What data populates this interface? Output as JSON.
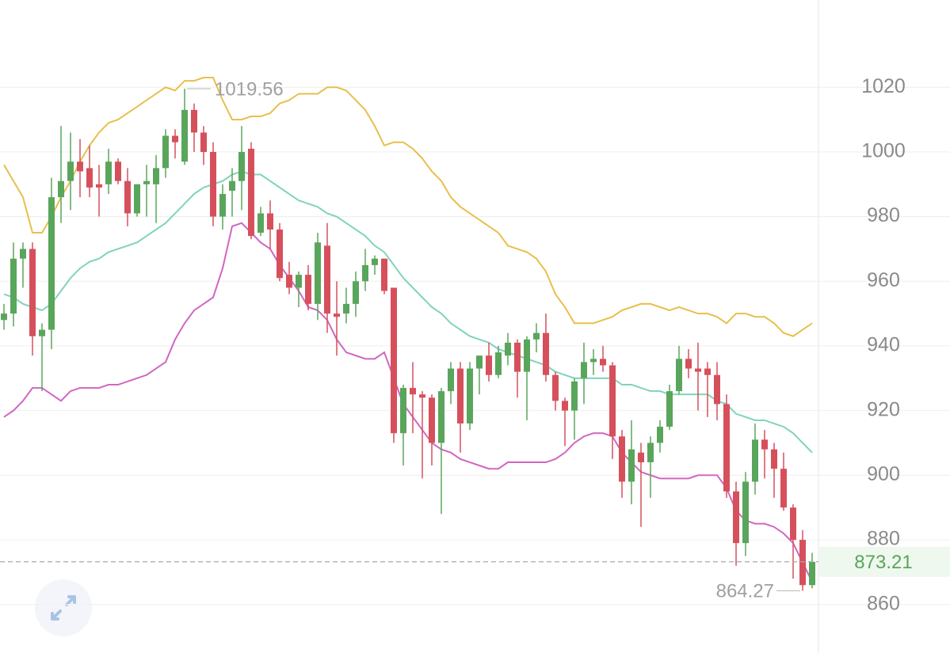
{
  "chart_data": {
    "type": "candlestick",
    "ylim": [
      845,
      1047
    ],
    "yticks": [
      860,
      880,
      900,
      920,
      940,
      960,
      980,
      1000,
      1020
    ],
    "grid": true,
    "up_color": "#5aa55c",
    "down_color": "#d6505c",
    "open": [
      948,
      950,
      967,
      970,
      943,
      945,
      986,
      991,
      997,
      995,
      990,
      990,
      997,
      991,
      981,
      990,
      990,
      995,
      1005,
      997,
      1013,
      1006,
      1000,
      980,
      988,
      991,
      1001,
      975,
      981,
      976,
      962,
      958,
      962,
      953,
      971,
      950,
      950,
      953,
      960,
      965,
      967,
      958,
      913,
      927,
      925,
      924,
      910,
      926,
      933,
      916,
      933,
      937,
      931,
      937,
      941,
      932,
      942,
      944,
      931,
      923,
      920,
      930,
      935,
      936,
      934,
      912,
      898,
      907,
      904,
      910,
      915,
      926,
      936,
      933,
      933,
      931,
      922,
      895,
      879,
      898,
      911,
      908,
      902,
      890,
      880,
      866
    ],
    "high": [
      953,
      972,
      972,
      972,
      947,
      992,
      1008,
      1006,
      1004,
      1002,
      996,
      1001,
      998,
      995,
      990,
      996,
      999,
      1007,
      1007,
      1019.56,
      1015,
      1008,
      1003,
      990,
      995,
      1008,
      1003,
      983,
      985,
      978,
      966,
      963,
      965,
      975,
      978,
      960,
      958,
      963,
      970,
      968,
      967,
      958,
      928,
      935,
      926,
      925,
      927,
      935,
      935,
      935,
      937,
      941,
      940,
      944,
      942,
      943,
      947,
      950,
      932,
      924,
      930,
      941,
      939,
      940,
      935,
      914,
      917,
      910,
      912,
      917,
      928,
      940,
      939,
      941,
      935,
      935,
      925,
      898,
      901,
      916,
      914,
      910,
      907,
      891,
      883,
      876
    ],
    "low": [
      945,
      946,
      958,
      937,
      926,
      939,
      978,
      982,
      986,
      986,
      980,
      987,
      990,
      977,
      980,
      980,
      978,
      992,
      998,
      996,
      1000,
      996,
      977,
      976,
      980,
      982,
      973,
      974,
      970,
      960,
      956,
      952,
      951,
      948,
      944,
      937,
      947,
      949,
      957,
      962,
      956,
      910,
      903,
      913,
      899,
      903,
      888,
      922,
      907,
      914,
      925,
      929,
      930,
      934,
      924,
      917,
      938,
      929,
      920,
      909,
      911,
      922,
      931,
      932,
      905,
      893,
      891,
      884,
      893,
      907,
      914,
      925,
      930,
      920,
      918,
      917,
      893,
      872,
      875,
      894,
      899,
      893,
      889,
      868,
      864.27,
      865
    ],
    "close": [
      950,
      967,
      970,
      943,
      945,
      986,
      991,
      997,
      994,
      989,
      989,
      997,
      991,
      981,
      990,
      991,
      995,
      1005,
      1003,
      1013,
      1006,
      1000,
      980,
      987,
      991,
      1000,
      974,
      981,
      976,
      961,
      958,
      962,
      953,
      972,
      950,
      949,
      953,
      960,
      965,
      967,
      957,
      913,
      927,
      925,
      924,
      910,
      926,
      933,
      916,
      933,
      937,
      931,
      938,
      941,
      932,
      942,
      944,
      931,
      923,
      920,
      929,
      935,
      936,
      934,
      912,
      898,
      908,
      904,
      910,
      915,
      926,
      936,
      933,
      932,
      931,
      922,
      895,
      879,
      898,
      911,
      908,
      902,
      890,
      880,
      866,
      873.21
    ],
    "series": [
      {
        "color": "#e8bf4c",
        "values": [
          996,
          991,
          986,
          975,
          975,
          980,
          986,
          991,
          997,
          1002,
          1006,
          1009,
          1010,
          1012,
          1014,
          1016,
          1018,
          1020,
          1019,
          1022,
          1022,
          1023,
          1023,
          1016,
          1010,
          1010,
          1011,
          1011,
          1012,
          1015,
          1016,
          1018,
          1018,
          1018,
          1020,
          1020,
          1019,
          1016,
          1013,
          1008,
          1002,
          1003,
          1003,
          1001,
          998,
          994,
          991,
          986,
          983,
          981,
          979,
          977,
          975,
          971,
          970,
          969,
          967,
          963,
          956,
          952,
          947,
          947,
          947,
          948,
          949,
          951,
          952,
          953,
          953,
          952,
          951,
          952,
          951,
          950,
          950,
          949,
          947,
          950,
          950,
          949,
          949,
          947,
          944,
          943,
          945,
          947
        ]
      },
      {
        "color": "#7fd3bd",
        "values": [
          956,
          955,
          953,
          952,
          951,
          953,
          957,
          961,
          964,
          966,
          967,
          969,
          970,
          971,
          972,
          974,
          976,
          978,
          981,
          984,
          987,
          989,
          990,
          991,
          993,
          994,
          993,
          993,
          991,
          989,
          987,
          985,
          984,
          983,
          981,
          980,
          978,
          976,
          974,
          971,
          969,
          965,
          961,
          958,
          955,
          952,
          950,
          947,
          945,
          943,
          942,
          941,
          939,
          938,
          937,
          936,
          935,
          934,
          932,
          931,
          930,
          930,
          930,
          930,
          930,
          928,
          928,
          927,
          926,
          926,
          925,
          925,
          925,
          925,
          925,
          923,
          922,
          919,
          918,
          917,
          917,
          916,
          915,
          913,
          910,
          907
        ]
      },
      {
        "color": "#d166c1",
        "values": [
          918,
          920,
          923,
          927,
          927,
          925,
          923,
          926,
          927,
          927,
          927,
          928,
          928,
          929,
          930,
          931,
          933,
          935,
          942,
          947,
          951,
          953,
          955,
          964,
          977,
          978,
          975,
          972,
          970,
          965,
          961,
          957,
          952,
          951,
          948,
          942,
          938,
          937,
          936,
          936,
          938,
          930,
          922,
          918,
          914,
          910,
          908,
          907,
          905,
          904,
          903,
          902,
          902,
          904,
          904,
          904,
          904,
          904,
          905,
          907,
          910,
          912,
          913,
          913,
          912,
          907,
          904,
          901,
          900,
          899,
          899,
          899,
          899,
          900,
          900,
          900,
          896,
          889,
          886,
          885,
          885,
          884,
          882,
          879,
          873,
          867
        ]
      }
    ]
  }
}
